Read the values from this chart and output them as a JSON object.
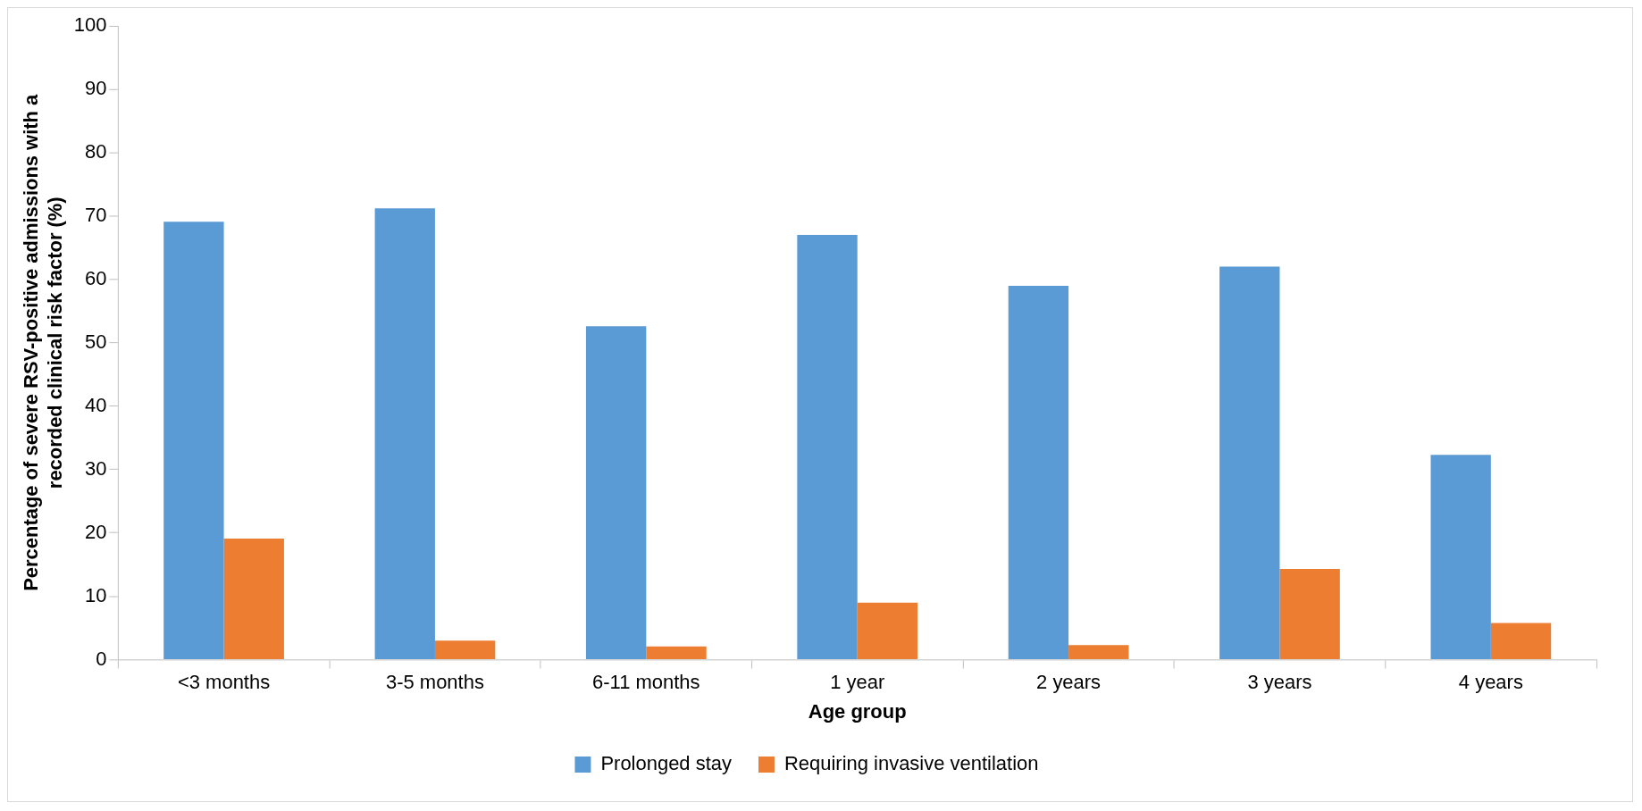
{
  "chart_data": {
    "type": "bar",
    "xlabel": "Age group",
    "ylabel": "Percentage of severe RSV-positive admissions with a recorded clinical risk factor (%)",
    "categories": [
      "<3 months",
      "3-5 months",
      "6-11 months",
      "1 year",
      "2 years",
      "3 years",
      "4 years"
    ],
    "series": [
      {
        "name": "Prolonged stay",
        "color": "#5b9bd5",
        "values": [
          69.1,
          71.2,
          52.6,
          67.0,
          59.0,
          62.0,
          32.3
        ]
      },
      {
        "name": "Requiring invasive ventilation",
        "color": "#ed7d31",
        "values": [
          19.1,
          3.0,
          2.1,
          9.0,
          2.3,
          14.3,
          5.8
        ]
      }
    ],
    "ylim": [
      0,
      100
    ],
    "yticks": [
      0,
      10,
      20,
      30,
      40,
      50,
      60,
      70,
      80,
      90,
      100
    ],
    "grid": false,
    "legend": "bottom"
  }
}
